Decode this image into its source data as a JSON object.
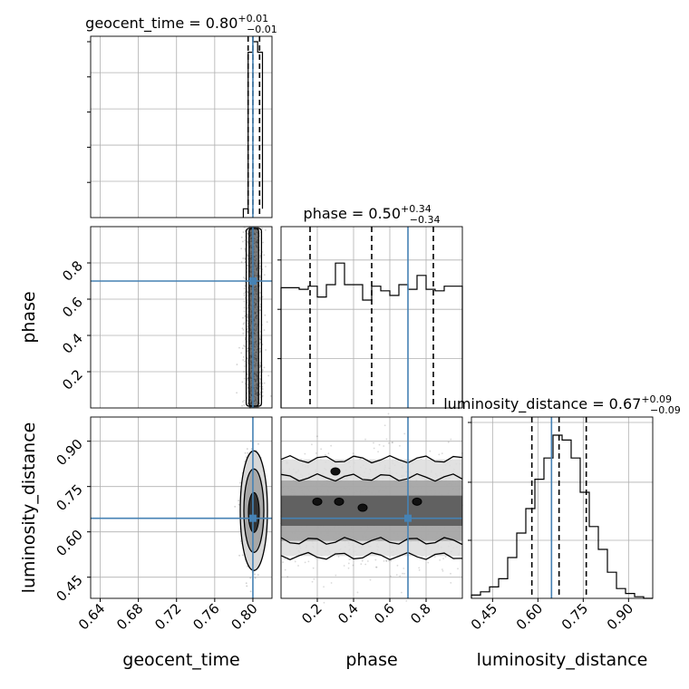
{
  "chart_data": {
    "type": "corner",
    "truth_color": "#4682b4",
    "grid": true,
    "parameters": [
      {
        "name": "geocent_time",
        "median": "0.80",
        "plus": "+0.01",
        "minus": "−0.01",
        "truth": 0.8,
        "quantiles": [
          0.795,
          0.8,
          0.807
        ]
      },
      {
        "name": "phase",
        "median": "0.50",
        "plus": "+0.34",
        "minus": "−0.34",
        "truth": 0.7,
        "quantiles": [
          0.16,
          0.5,
          0.84
        ]
      },
      {
        "name": "luminosity_distance",
        "median": "0.67",
        "plus": "+0.09",
        "minus": "−0.09",
        "truth": 0.645,
        "quantiles": [
          0.58,
          0.67,
          0.76
        ]
      }
    ],
    "ticks": {
      "geocent_time": [
        "0.64",
        "0.68",
        "0.72",
        "0.76",
        "0.80"
      ],
      "phase": [
        "0.2",
        "0.4",
        "0.6",
        "0.8"
      ],
      "luminosity_distance": [
        "0.45",
        "0.60",
        "0.75",
        "0.90"
      ]
    },
    "axis_ranges": {
      "geocent_time": [
        0.63,
        0.82
      ],
      "phase": [
        0.0,
        1.0
      ],
      "luminosity_distance": [
        0.38,
        0.98
      ]
    },
    "hist_geocent_time": {
      "edges": [
        0.79,
        0.795,
        0.8,
        0.805,
        0.81
      ],
      "values": [
        0.05,
        0.94,
        1.0,
        0.94,
        0.05
      ]
    },
    "hist_phase": {
      "x": [
        0.0,
        0.05,
        0.1,
        0.15,
        0.2,
        0.25,
        0.3,
        0.35,
        0.4,
        0.45,
        0.5,
        0.55,
        0.6,
        0.65,
        0.7,
        0.75,
        0.8,
        0.85,
        0.9,
        0.95
      ],
      "values": [
        0.78,
        0.78,
        0.77,
        0.79,
        0.72,
        0.8,
        0.94,
        0.8,
        0.8,
        0.7,
        0.79,
        0.76,
        0.73,
        0.8,
        0.77,
        0.86,
        0.77,
        0.76,
        0.79,
        0.79
      ]
    },
    "hist_luminosity_distance": {
      "x": [
        0.38,
        0.41,
        0.44,
        0.47,
        0.5,
        0.53,
        0.56,
        0.59,
        0.62,
        0.65,
        0.68,
        0.71,
        0.74,
        0.77,
        0.8,
        0.83,
        0.86,
        0.89,
        0.92,
        0.95
      ],
      "values": [
        0.02,
        0.04,
        0.07,
        0.12,
        0.25,
        0.4,
        0.55,
        0.73,
        0.86,
        1.0,
        0.97,
        0.86,
        0.65,
        0.44,
        0.3,
        0.16,
        0.06,
        0.03,
        0.01,
        0.0
      ]
    }
  }
}
